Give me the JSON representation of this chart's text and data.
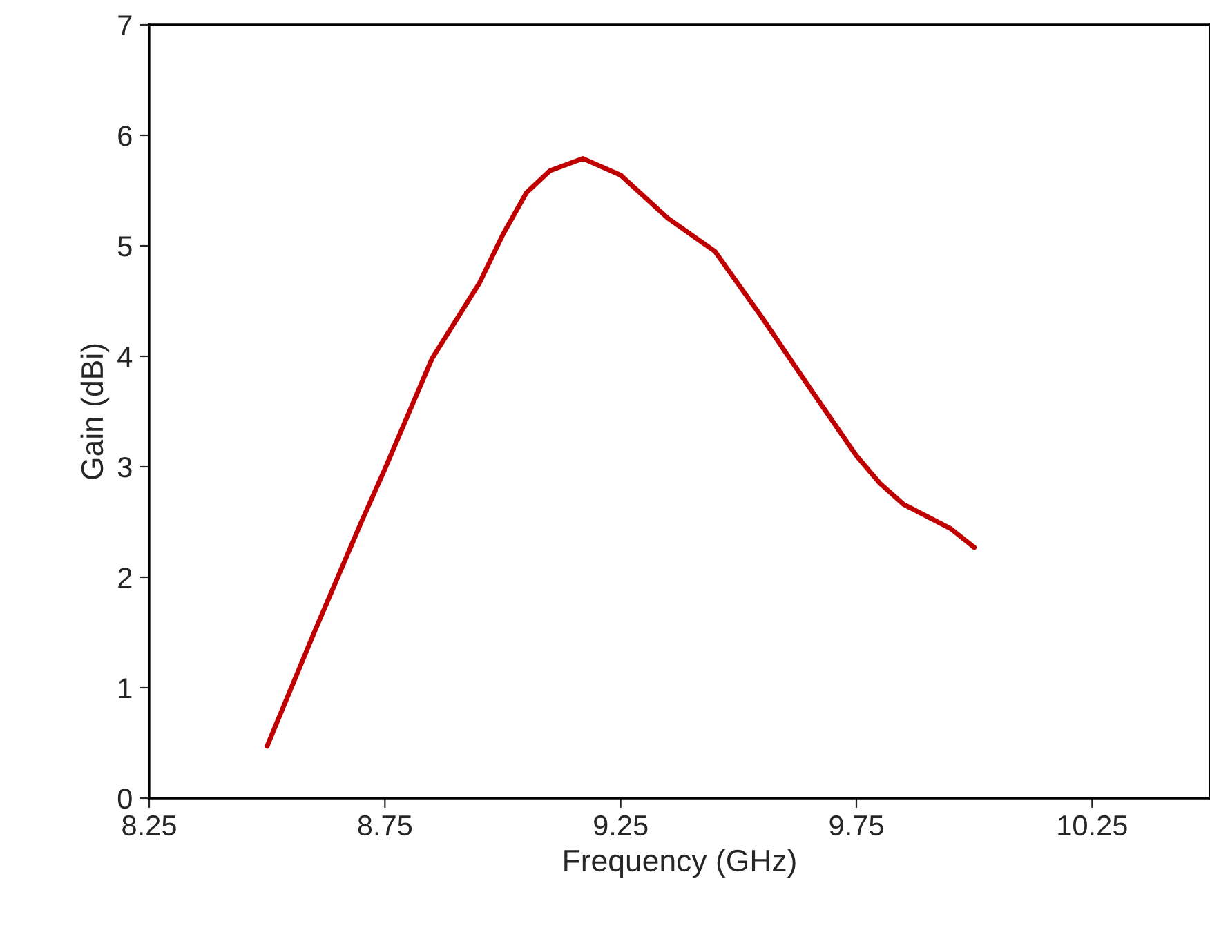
{
  "chart_data": {
    "type": "line",
    "xlabel": "Frequency (GHz)",
    "ylabel": "Gain (dBi)",
    "xlim": [
      8.25,
      10.5
    ],
    "xticks": [
      8.25,
      8.75,
      9.25,
      9.75,
      10.25
    ],
    "ylim": [
      0,
      7
    ],
    "yticks": [
      0,
      1,
      2,
      3,
      4,
      5,
      6,
      7
    ],
    "grid": false,
    "legend": false,
    "series": [
      {
        "color": "#c00000",
        "x": [
          8.5,
          8.6,
          8.7,
          8.75,
          8.85,
          8.95,
          9.0,
          9.05,
          9.1,
          9.17,
          9.25,
          9.35,
          9.45,
          9.55,
          9.65,
          9.75,
          9.8,
          9.85,
          9.95,
          10.0
        ],
        "values": [
          0.47,
          1.5,
          2.5,
          2.98,
          3.98,
          4.66,
          5.1,
          5.48,
          5.68,
          5.79,
          5.64,
          5.25,
          4.95,
          4.35,
          3.72,
          3.1,
          2.85,
          2.66,
          2.44,
          2.27
        ]
      }
    ]
  }
}
